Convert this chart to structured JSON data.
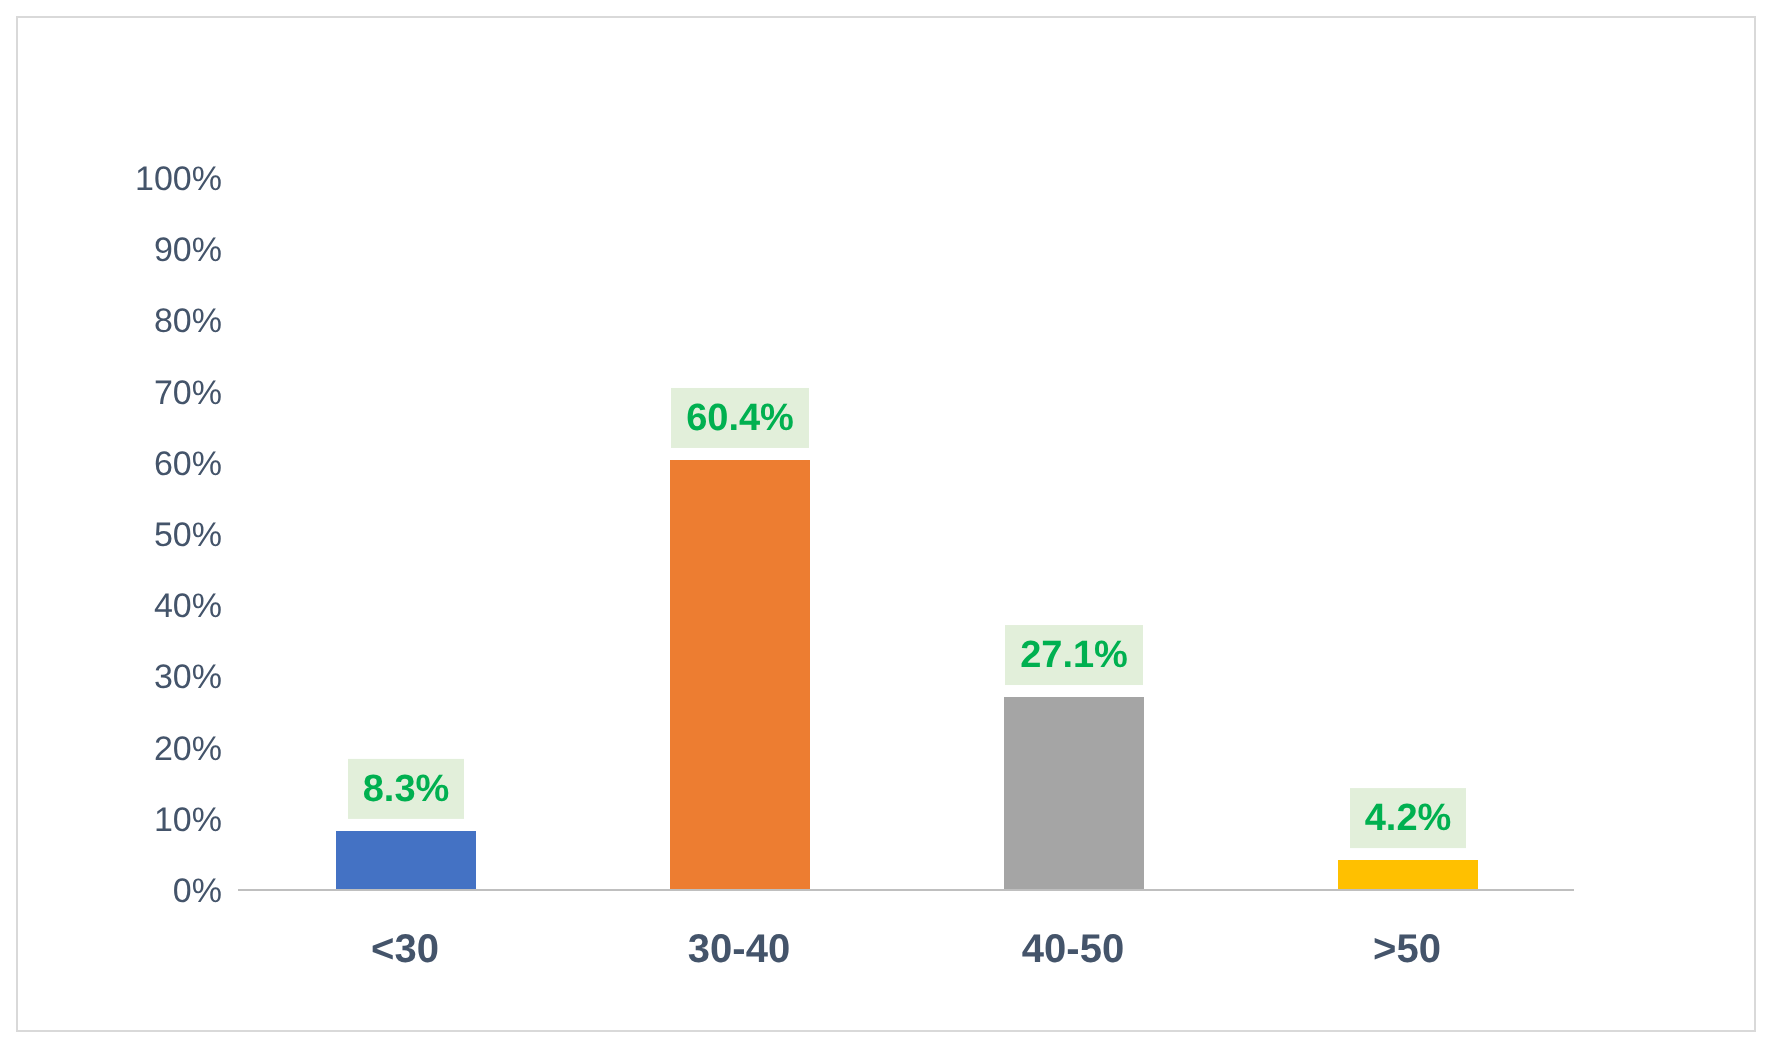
{
  "chart_data": {
    "type": "bar",
    "categories": [
      "<30",
      "30-40",
      "40-50",
      ">50"
    ],
    "values": [
      8.3,
      60.4,
      27.1,
      4.2
    ],
    "colors": [
      "#4472c4",
      "#ed7d31",
      "#a5a5a5",
      "#ffc000"
    ],
    "value_labels": [
      "8.3%",
      "60.4%",
      "27.1%",
      "4.2%"
    ],
    "ylim": [
      0,
      100
    ],
    "yticks": [
      {
        "value": 0,
        "label": "0%"
      },
      {
        "value": 10,
        "label": "10%"
      },
      {
        "value": 20,
        "label": "20%"
      },
      {
        "value": 30,
        "label": "30%"
      },
      {
        "value": 40,
        "label": "40%"
      },
      {
        "value": 50,
        "label": "50%"
      },
      {
        "value": 60,
        "label": "60%"
      },
      {
        "value": 70,
        "label": "70%"
      },
      {
        "value": 80,
        "label": "80%"
      },
      {
        "value": 90,
        "label": "90%"
      },
      {
        "value": 100,
        "label": "100%"
      }
    ],
    "grid": false,
    "legend": false
  }
}
